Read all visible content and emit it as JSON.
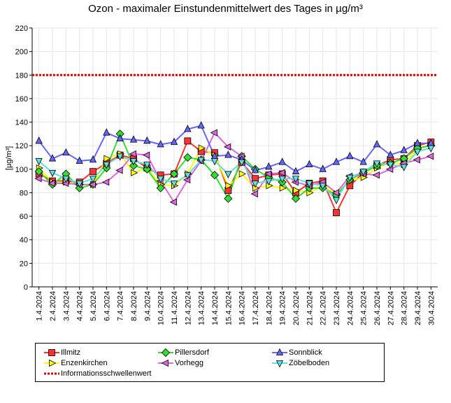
{
  "chart_data": {
    "type": "line",
    "title": "Ozon -  maximaler Einstundenmittelwert des Tages in µg/m³",
    "ylabel": "[µg/m³]",
    "xlabel": "",
    "ylim": [
      0,
      220
    ],
    "yticks": [
      0,
      20,
      40,
      60,
      80,
      100,
      120,
      140,
      160,
      180,
      200,
      220
    ],
    "grid": true,
    "legend_position": "bottom",
    "categories": [
      "1.4.2024",
      "2.4.2024",
      "3.4.2024",
      "4.4.2024",
      "5.4.2024",
      "6.4.2024",
      "7.4.2024",
      "8.4.2024",
      "9.4.2024",
      "10.4.2024",
      "11.4.2024",
      "12.4.2024",
      "13.4.2024",
      "14.4.2024",
      "15.4.2024",
      "16.4.2024",
      "17.4.2024",
      "18.4.2024",
      "19.4.2024",
      "20.4.2024",
      "21.4.2024",
      "22.4.2024",
      "23.4.2024",
      "24.4.2024",
      "25.4.2024",
      "26.4.2024",
      "27.4.2024",
      "28.4.2024",
      "29.4.2024",
      "30.4.2024"
    ],
    "series": [
      {
        "name": "Illmitz",
        "color": "#ff3333",
        "marker": "square",
        "values": [
          96,
          90,
          90,
          89,
          98,
          105,
          112,
          109,
          101,
          95,
          96,
          124,
          115,
          114,
          82,
          106,
          92,
          95,
          96,
          80,
          88,
          90,
          63,
          86,
          97,
          103,
          108,
          109,
          120,
          123
        ]
      },
      {
        "name": "Enzenkirchen",
        "color": "#ffff00",
        "marker": "triangle-right",
        "values": [
          101,
          89,
          89,
          87,
          87,
          109,
          113,
          97,
          101,
          87,
          86,
          96,
          118,
          112,
          86,
          96,
          84,
          86,
          84,
          82,
          80,
          86,
          79,
          90,
          93,
          101,
          106,
          104,
          117,
          120
        ]
      },
      {
        "name": "Pillersdorf",
        "color": "#33dd33",
        "marker": "diamond",
        "values": [
          98,
          87,
          96,
          84,
          87,
          101,
          130,
          103,
          100,
          84,
          96,
          110,
          108,
          95,
          75,
          111,
          100,
          93,
          89,
          75,
          84,
          84,
          78,
          91,
          97,
          103,
          105,
          109,
          118,
          120
        ]
      },
      {
        "name": "Vorhegg",
        "color": "#dd66dd",
        "marker": "triangle-left",
        "values": [
          92,
          88,
          88,
          87,
          87,
          89,
          99,
          113,
          112,
          90,
          72,
          91,
          107,
          131,
          119,
          111,
          79,
          96,
          97,
          89,
          86,
          89,
          80,
          94,
          96,
          95,
          100,
          105,
          108,
          111
        ]
      },
      {
        "name": "Sonnblick",
        "color": "#6666ff",
        "marker": "triangle-up",
        "values": [
          124,
          109,
          114,
          107,
          108,
          131,
          126,
          125,
          124,
          121,
          123,
          134,
          137,
          111,
          112,
          108,
          99,
          102,
          106,
          98,
          104,
          100,
          106,
          111,
          106,
          121,
          112,
          116,
          122,
          122
        ]
      },
      {
        "name": "Zöbelboden",
        "color": "#66dddd",
        "marker": "triangle-down",
        "values": [
          107,
          97,
          92,
          88,
          92,
          104,
          111,
          107,
          104,
          92,
          88,
          95,
          108,
          107,
          96,
          106,
          88,
          90,
          92,
          92,
          88,
          86,
          74,
          93,
          98,
          105,
          104,
          102,
          115,
          118
        ]
      }
    ],
    "threshold": {
      "name": "Informationsschwellenwert",
      "value": 180,
      "color": "#dd0000"
    }
  },
  "colors": {
    "grid": "#e6e6e6",
    "axis": "#000000"
  }
}
